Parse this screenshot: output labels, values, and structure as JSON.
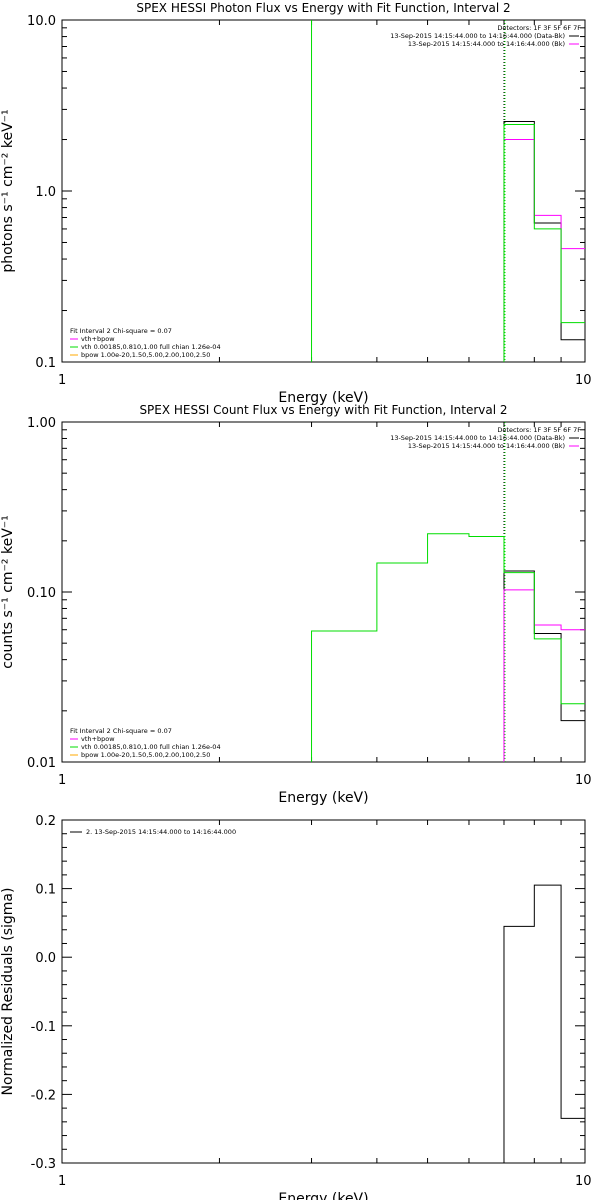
{
  "colors": {
    "data": "#000000",
    "background": "#ff00ff",
    "fit": "#00dd00",
    "vth": "#ff00ff",
    "bpow": "#ffaa00"
  },
  "chart_data": [
    {
      "type": "line",
      "title": "SPEX HESSI Photon Flux vs Energy with Fit Function, Interval 2",
      "xlabel": "Energy (keV)",
      "ylabel": "photons s⁻¹ cm⁻² keV⁻¹",
      "xlim": [
        1,
        10
      ],
      "xscale": "log",
      "ylim": [
        0.1,
        10
      ],
      "yscale": "log",
      "xticks": [
        "1",
        "10"
      ],
      "yticks": [
        "0.1",
        "1.0",
        "10.0"
      ],
      "vlines": [
        3.0,
        7.0
      ],
      "detectors": "Detectors: 1F 3F 5F 6F 7F",
      "legend_right": [
        "13-Sep-2015 14:15:44.000 to 14:16:44.000 (Data-Bk)",
        "13-Sep-2015 14:15:44.000 to 14:16:44.000 (Bk)"
      ],
      "legend_left": [
        "Fit Interval 2   Chi-square = 0.07",
        "vth+bpow",
        "vth 0.00185,0.810,1.00  full chian 1.26e-04",
        "bpow 1.00e-20,1.50,5.00,2.00,100,2.50"
      ],
      "series": [
        {
          "name": "13-Sep-2015 14:15:44.000 to 14:16:44.000 (Data-Bk)",
          "color": "#000000",
          "edges": [
            7.0,
            8.0,
            9.0,
            10.0
          ],
          "values": [
            2.55,
            0.65,
            0.135
          ]
        },
        {
          "name": "13-Sep-2015 14:15:44.000 to 14:16:44.000 (Bk)",
          "color": "#ff00ff",
          "edges": [
            7.0,
            8.0,
            9.0,
            10.0
          ],
          "values": [
            2.0,
            0.72,
            0.46
          ]
        },
        {
          "name": "vth+bpow",
          "color": "#00dd00",
          "edges": [
            7.0,
            8.0,
            9.0,
            10.0
          ],
          "values": [
            2.45,
            0.6,
            0.17
          ]
        }
      ]
    },
    {
      "type": "line",
      "title": "SPEX HESSI Count Flux vs Energy with Fit Function, Interval 2",
      "xlabel": "Energy (keV)",
      "ylabel": "counts s⁻¹ cm⁻² keV⁻¹",
      "xlim": [
        1,
        10
      ],
      "xscale": "log",
      "ylim": [
        0.01,
        1
      ],
      "yscale": "log",
      "xticks": [
        "1",
        "10"
      ],
      "yticks": [
        "0.01",
        "0.10",
        "1.00"
      ],
      "vlines": [
        7.0
      ],
      "detectors": "Detectors: 1F 3F 5F 6F 7F",
      "legend_right": [
        "13-Sep-2015 14:15:44.000 to 14:16:44.000 (Data-Bk)",
        "13-Sep-2015 14:15:44.000 to 14:16:44.000 (Bk)"
      ],
      "legend_left": [
        "Fit Interval 2   Chi-square = 0.07",
        "vth+bpow",
        "vth 0.00185,0.810,1.00  full chian 1.26e-04",
        "bpow 1.00e-20,1.50,5.00,2.00,100,2.50"
      ],
      "series": [
        {
          "name": "13-Sep-2015 14:15:44.000 to 14:16:44.000 (Data-Bk)",
          "color": "#000000",
          "edges": [
            7.0,
            8.0,
            9.0,
            10.0
          ],
          "values": [
            0.133,
            0.057,
            0.0175
          ]
        },
        {
          "name": "13-Sep-2015 14:15:44.000 to 14:16:44.000 (Bk)",
          "color": "#ff00ff",
          "edges": [
            7.0,
            8.0,
            9.0,
            10.0
          ],
          "values": [
            0.103,
            0.064,
            0.06
          ]
        },
        {
          "name": "vth+bpow",
          "color": "#00dd00",
          "edges": [
            3.0,
            4.0,
            5.0,
            6.0,
            7.0,
            8.0,
            9.0,
            10.0
          ],
          "values": [
            0.059,
            0.148,
            0.22,
            0.212,
            0.13,
            0.053,
            0.022
          ]
        }
      ]
    },
    {
      "type": "line",
      "title": "",
      "xlabel": "Energy (keV)",
      "ylabel": "Normalized Residuals (sigma)",
      "xlim": [
        1,
        10
      ],
      "xscale": "log",
      "ylim": [
        -0.3,
        0.2
      ],
      "xticks": [
        "1",
        "10"
      ],
      "yticks": [
        "-0.3",
        "-0.2",
        "-0.1",
        "0.0",
        "0.1",
        "0.2"
      ],
      "legend_left": [
        "2. 13-Sep-2015 14:15:44.000 to 14:16:44.000"
      ],
      "series": [
        {
          "name": "2. 13-Sep-2015 14:15:44.000 to 14:16:44.000",
          "color": "#000000",
          "edges": [
            7.0,
            8.0,
            9.0,
            10.0
          ],
          "values": [
            0.045,
            0.105,
            -0.235
          ]
        }
      ]
    }
  ]
}
